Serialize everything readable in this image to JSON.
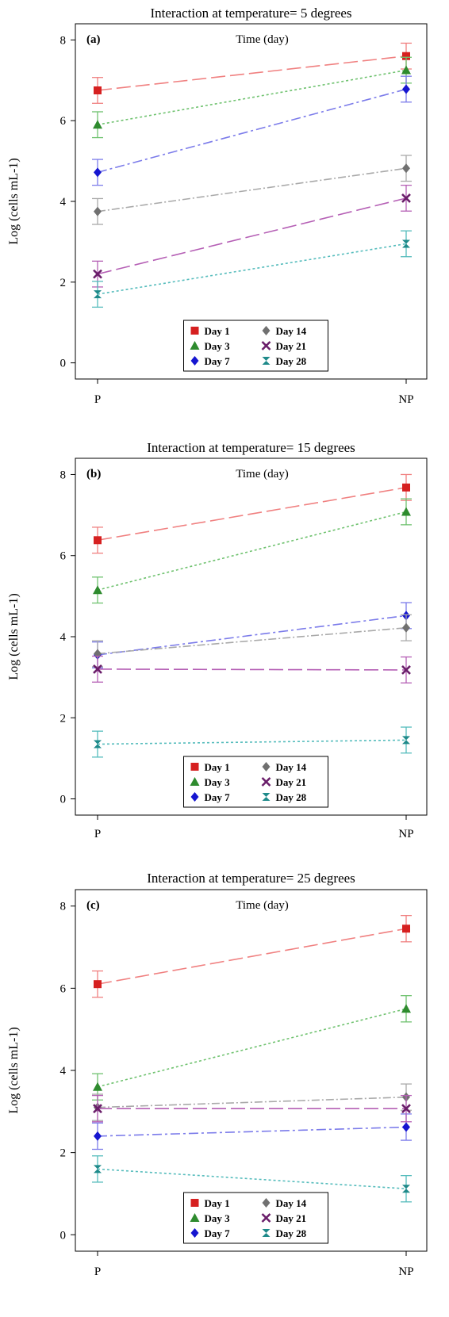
{
  "chart_data": [
    {
      "type": "line",
      "title": "Interaction at temperature= 5 degrees",
      "panel_label": "(a)",
      "subtitle": "Time (day)",
      "ylabel": "Log (cells mL-1)",
      "categories": [
        "P",
        "NP"
      ],
      "ylim": [
        -0.4,
        8.4
      ],
      "yticks": [
        0,
        2,
        4,
        6,
        8
      ],
      "legend_position": "bottom-center",
      "series": [
        {
          "name": "Day 1",
          "values": [
            6.75,
            7.6
          ],
          "error": [
            0.32,
            0.32
          ],
          "color": "#f08080",
          "marker": "square",
          "marker_color": "#d62020"
        },
        {
          "name": "Day 3",
          "values": [
            5.9,
            7.25
          ],
          "error": [
            0.32,
            0.32
          ],
          "color": "#6fc26f",
          "marker": "triangle",
          "marker_color": "#2e8b2e"
        },
        {
          "name": "Day 7",
          "values": [
            4.72,
            6.78
          ],
          "error": [
            0.32,
            0.32
          ],
          "color": "#7b7bea",
          "marker": "diamond",
          "marker_color": "#1515d0"
        },
        {
          "name": "Day 14",
          "values": [
            3.75,
            4.82
          ],
          "error": [
            0.32,
            0.32
          ],
          "color": "#a9a9a9",
          "marker": "diamond",
          "marker_color": "#707070"
        },
        {
          "name": "Day 21",
          "values": [
            2.2,
            4.08
          ],
          "error": [
            0.32,
            0.32
          ],
          "color": "#b55fb5",
          "marker": "x",
          "marker_color": "#6a1e6a"
        },
        {
          "name": "Day 28",
          "values": [
            1.7,
            2.95
          ],
          "error": [
            0.32,
            0.32
          ],
          "color": "#55bcbc",
          "marker": "hourglass",
          "marker_color": "#1e8a8a"
        }
      ]
    },
    {
      "type": "line",
      "title": "Interaction at temperature= 15 degrees",
      "panel_label": "(b)",
      "subtitle": "Time (day)",
      "ylabel": "Log (cells mL-1)",
      "categories": [
        "P",
        "NP"
      ],
      "ylim": [
        -0.4,
        8.4
      ],
      "yticks": [
        0,
        2,
        4,
        6,
        8
      ],
      "legend_position": "bottom-center",
      "series": [
        {
          "name": "Day 1",
          "values": [
            6.38,
            7.68
          ],
          "error": [
            0.32,
            0.32
          ],
          "color": "#f08080",
          "marker": "square",
          "marker_color": "#d62020"
        },
        {
          "name": "Day 3",
          "values": [
            5.15,
            7.08
          ],
          "error": [
            0.32,
            0.32
          ],
          "color": "#6fc26f",
          "marker": "triangle",
          "marker_color": "#2e8b2e"
        },
        {
          "name": "Day 7",
          "values": [
            3.55,
            4.52
          ],
          "error": [
            0.32,
            0.32
          ],
          "color": "#7b7bea",
          "marker": "diamond",
          "marker_color": "#1515d0"
        },
        {
          "name": "Day 14",
          "values": [
            3.58,
            4.22
          ],
          "error": [
            0.32,
            0.32
          ],
          "color": "#a9a9a9",
          "marker": "diamond",
          "marker_color": "#707070"
        },
        {
          "name": "Day 21",
          "values": [
            3.2,
            3.18
          ],
          "error": [
            0.32,
            0.32
          ],
          "color": "#b55fb5",
          "marker": "x",
          "marker_color": "#6a1e6a"
        },
        {
          "name": "Day 28",
          "values": [
            1.35,
            1.45
          ],
          "error": [
            0.32,
            0.32
          ],
          "color": "#55bcbc",
          "marker": "hourglass",
          "marker_color": "#1e8a8a"
        }
      ]
    },
    {
      "type": "line",
      "title": "Interaction at temperature= 25 degrees",
      "panel_label": "(c)",
      "subtitle": "Time (day)",
      "ylabel": "Log (cells mL-1)",
      "categories": [
        "P",
        "NP"
      ],
      "ylim": [
        -0.4,
        8.4
      ],
      "yticks": [
        0,
        2,
        4,
        6,
        8
      ],
      "legend_position": "bottom-center",
      "series": [
        {
          "name": "Day 1",
          "values": [
            6.1,
            7.45
          ],
          "error": [
            0.32,
            0.32
          ],
          "color": "#f08080",
          "marker": "square",
          "marker_color": "#d62020"
        },
        {
          "name": "Day 3",
          "values": [
            3.6,
            5.5
          ],
          "error": [
            0.32,
            0.32
          ],
          "color": "#6fc26f",
          "marker": "triangle",
          "marker_color": "#2e8b2e"
        },
        {
          "name": "Day 7",
          "values": [
            2.4,
            2.62
          ],
          "error": [
            0.32,
            0.32
          ],
          "color": "#7b7bea",
          "marker": "diamond",
          "marker_color": "#1515d0"
        },
        {
          "name": "Day 14",
          "values": [
            3.1,
            3.35
          ],
          "error": [
            0.32,
            0.32
          ],
          "color": "#a9a9a9",
          "marker": "diamond",
          "marker_color": "#707070"
        },
        {
          "name": "Day 21",
          "values": [
            3.07,
            3.07
          ],
          "error": [
            0.32,
            0.32
          ],
          "color": "#b55fb5",
          "marker": "x",
          "marker_color": "#6a1e6a"
        },
        {
          "name": "Day 28",
          "values": [
            1.6,
            1.12
          ],
          "error": [
            0.32,
            0.32
          ],
          "color": "#55bcbc",
          "marker": "hourglass",
          "marker_color": "#1e8a8a"
        }
      ]
    }
  ]
}
